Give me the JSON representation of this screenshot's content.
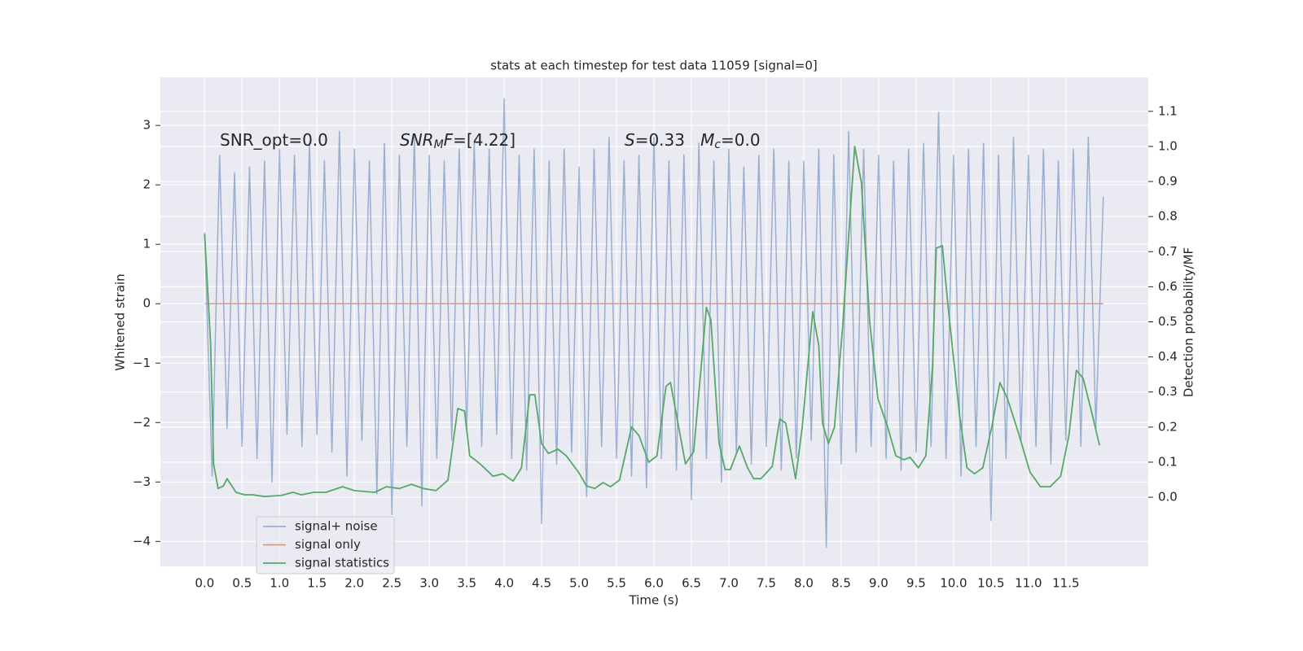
{
  "chart_data": {
    "type": "line",
    "title": "stats at each timestep for test data 11059 [signal=0]",
    "xlabel": "Time (s)",
    "ylabel": "Whitened strain",
    "y2label": "Detection probability/MF",
    "annotations": [
      [
        {
          "text": "SNR_opt=0.0"
        }
      ],
      [
        {
          "text": "SNR",
          "italic": true
        },
        {
          "text": "M",
          "italic": true,
          "sub": true
        },
        {
          "text": "F",
          "italic": true
        },
        {
          "text": "=[4.22]"
        }
      ],
      [
        {
          "text": "S",
          "italic": true
        },
        {
          "text": "=0.33   "
        },
        {
          "text": "M",
          "italic": true
        },
        {
          "text": "c",
          "italic": true,
          "sub": true
        },
        {
          "text": "=0.0"
        }
      ]
    ],
    "xlim": [
      -0.59,
      12.6
    ],
    "ylim": [
      -4.42,
      3.81
    ],
    "y2lim": [
      -0.197,
      1.197
    ],
    "xticks": [
      {
        "value": 0,
        "label": "0.0"
      },
      0.5,
      {
        "value": 1,
        "label": "1.0"
      },
      1.5,
      {
        "value": 2,
        "label": "2.0"
      },
      2.5,
      {
        "value": 3,
        "label": "3.0"
      },
      3.5,
      {
        "value": 4,
        "label": "4.0"
      },
      4.5,
      {
        "value": 5,
        "label": "5.0"
      },
      5.5,
      {
        "value": 6,
        "label": "6.0"
      },
      6.5,
      {
        "value": 7,
        "label": "7.0"
      },
      7.5,
      {
        "value": 8,
        "label": "8.0"
      },
      8.5,
      {
        "value": 9,
        "label": "9.0"
      },
      9.5,
      {
        "value": 10,
        "label": "10.0"
      },
      10.5,
      {
        "value": 11,
        "label": "11.0"
      },
      11.5
    ],
    "yticks": [
      {
        "value": -4,
        "label": "−4"
      },
      {
        "value": -3,
        "label": "−3"
      },
      {
        "value": -2,
        "label": "−2"
      },
      {
        "value": -1,
        "label": "−1"
      },
      0,
      1,
      2,
      3
    ],
    "y2ticks": [
      {
        "value": 0,
        "label": "0.0"
      },
      0.1,
      0.2,
      0.3,
      0.4,
      0.5,
      0.6,
      0.7,
      0.8,
      0.9,
      {
        "value": 1,
        "label": "1.0"
      },
      1.1
    ],
    "grid": true,
    "background": "#eaeaf2",
    "legend_loc": "lower left",
    "series": [
      {
        "name": "signal+ noise",
        "color": "#4c72b0",
        "alpha": 0.5,
        "x": [
          0,
          0.1,
          0.2,
          0.3,
          0.4,
          0.5,
          0.6,
          0.7,
          0.8,
          0.9,
          1,
          1.1,
          1.2,
          1.3,
          1.4,
          1.5,
          1.6,
          1.7,
          1.8,
          1.9,
          2,
          2.1,
          2.2,
          2.3,
          2.4,
          2.5,
          2.6,
          2.7,
          2.8,
          2.9,
          3,
          3.1,
          3.2,
          3.3,
          3.4,
          3.5,
          3.6,
          3.7,
          3.8,
          3.9,
          4,
          4.1,
          4.2,
          4.3,
          4.4,
          4.5,
          4.6,
          4.7,
          4.8,
          4.9,
          5,
          5.1,
          5.2,
          5.3,
          5.4,
          5.5,
          5.6,
          5.7,
          5.8,
          5.9,
          6,
          6.1,
          6.2,
          6.3,
          6.4,
          6.5,
          6.6,
          6.7,
          6.8,
          6.9,
          7,
          7.1,
          7.2,
          7.3,
          7.4,
          7.5,
          7.6,
          7.7,
          7.8,
          7.9,
          8,
          8.1,
          8.2,
          8.3,
          8.4,
          8.5,
          8.6,
          8.7,
          8.8,
          8.9,
          9,
          9.1,
          9.2,
          9.3,
          9.4,
          9.5,
          9.6,
          9.7,
          9.8,
          9.9,
          10,
          10.1,
          10.2,
          10.3,
          10.4,
          10.5,
          10.6,
          10.7,
          10.8,
          10.9,
          11,
          11.1,
          11.2,
          11.3,
          11.4,
          11.5,
          11.6,
          11.7,
          11.8,
          11.9,
          12
        ],
        "values": [
          1.2,
          -2.9,
          2.5,
          -2.1,
          2.2,
          -2.4,
          2.3,
          -2.6,
          2.4,
          -3.0,
          2.6,
          -2.2,
          2.5,
          -2.4,
          2.7,
          -2.2,
          2.4,
          -2.5,
          2.9,
          -2.9,
          2.6,
          -2.3,
          2.4,
          -3.2,
          2.7,
          -3.55,
          2.5,
          -2.4,
          2.8,
          -3.4,
          2.5,
          -2.6,
          2.4,
          -2.3,
          2.6,
          -2.1,
          2.7,
          -2.4,
          2.6,
          -2.2,
          3.45,
          -2.6,
          2.5,
          -2.8,
          2.6,
          -3.7,
          2.4,
          -2.7,
          2.6,
          -2.5,
          2.3,
          -3.25,
          2.6,
          -2.4,
          2.8,
          -2.6,
          2.4,
          -2.9,
          2.5,
          -3.1,
          2.8,
          -2.6,
          2.4,
          -2.8,
          2.5,
          -3.3,
          2.7,
          -2.6,
          2.4,
          -3.0,
          2.6,
          -2.5,
          2.3,
          -2.7,
          2.5,
          -2.4,
          2.6,
          -2.8,
          2.4,
          -2.6,
          2.4,
          -2.3,
          2.6,
          -4.1,
          2.5,
          -2.7,
          2.9,
          -2.5,
          2.6,
          -2.4,
          2.5,
          -2.6,
          2.4,
          -2.8,
          2.6,
          -2.5,
          2.7,
          -2.4,
          3.22,
          -2.6,
          2.5,
          -2.9,
          2.6,
          -2.4,
          2.7,
          -3.65,
          2.5,
          -2.6,
          2.8,
          -2.3,
          2.5,
          -2.4,
          2.6,
          -2.7,
          2.4,
          -2.3,
          2.6,
          -2.4,
          2.8,
          -2.1,
          1.8
        ]
      },
      {
        "name": "signal only",
        "color": "#dd8452",
        "alpha": 0.8,
        "x": [
          0,
          12
        ],
        "values": [
          0,
          0
        ]
      },
      {
        "name": "signal statistics",
        "color": "#55a868",
        "alpha": 1,
        "axis": "y2",
        "x": [
          0,
          0.08,
          0.12,
          0.18,
          0.25,
          0.3,
          0.42,
          0.53,
          0.64,
          0.8,
          1.02,
          1.18,
          1.29,
          1.46,
          1.62,
          1.84,
          2.0,
          2.27,
          2.43,
          2.6,
          2.76,
          2.92,
          3.09,
          3.25,
          3.38,
          3.47,
          3.54,
          3.68,
          3.85,
          3.98,
          4.12,
          4.23,
          4.34,
          4.41,
          4.5,
          4.59,
          4.72,
          4.83,
          4.99,
          5.1,
          5.21,
          5.32,
          5.42,
          5.54,
          5.7,
          5.8,
          5.93,
          6.04,
          6.16,
          6.22,
          6.32,
          6.42,
          6.53,
          6.7,
          6.76,
          6.87,
          6.95,
          7.02,
          7.14,
          7.25,
          7.33,
          7.43,
          7.58,
          7.68,
          7.76,
          7.89,
          7.98,
          8.12,
          8.2,
          8.25,
          8.33,
          8.41,
          8.52,
          8.68,
          8.77,
          8.88,
          8.99,
          9.12,
          9.23,
          9.34,
          9.42,
          9.53,
          9.63,
          9.72,
          9.77,
          9.85,
          9.93,
          10.08,
          10.18,
          10.28,
          10.39,
          10.51,
          10.62,
          10.72,
          10.86,
          11.02,
          11.16,
          11.29,
          11.43,
          11.54,
          11.64,
          11.73,
          11.84,
          11.95
        ],
        "values": [
          0.75,
          0.44,
          0.095,
          0.025,
          0.032,
          0.053,
          0.014,
          0.007,
          0.007,
          0.002,
          0.005,
          0.014,
          0.007,
          0.014,
          0.014,
          0.03,
          0.019,
          0.014,
          0.03,
          0.025,
          0.037,
          0.025,
          0.019,
          0.049,
          0.253,
          0.246,
          0.118,
          0.095,
          0.06,
          0.067,
          0.046,
          0.084,
          0.292,
          0.292,
          0.153,
          0.125,
          0.137,
          0.118,
          0.072,
          0.032,
          0.025,
          0.042,
          0.03,
          0.049,
          0.2,
          0.176,
          0.1,
          0.118,
          0.316,
          0.327,
          0.211,
          0.095,
          0.13,
          0.541,
          0.506,
          0.153,
          0.079,
          0.079,
          0.146,
          0.084,
          0.053,
          0.053,
          0.088,
          0.223,
          0.211,
          0.053,
          0.2,
          0.529,
          0.432,
          0.211,
          0.153,
          0.2,
          0.49,
          1.0,
          0.896,
          0.501,
          0.281,
          0.2,
          0.118,
          0.107,
          0.114,
          0.084,
          0.118,
          0.374,
          0.71,
          0.717,
          0.536,
          0.234,
          0.084,
          0.067,
          0.084,
          0.2,
          0.327,
          0.281,
          0.188,
          0.072,
          0.03,
          0.03,
          0.06,
          0.176,
          0.362,
          0.339,
          0.246,
          0.148
        ]
      }
    ]
  }
}
